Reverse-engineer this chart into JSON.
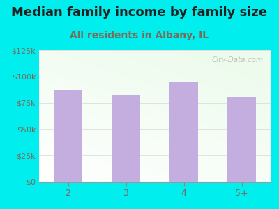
{
  "title": "Median family income by family size",
  "subtitle": "All residents in Albany, IL",
  "categories": [
    "2",
    "3",
    "4",
    "5+"
  ],
  "values": [
    87000,
    82000,
    95000,
    81000
  ],
  "bar_color": "#c4aee0",
  "background_color": "#00EEEE",
  "title_color": "#222222",
  "subtitle_color": "#7a6a5a",
  "tick_color": "#7a6a5a",
  "ylim": [
    0,
    125000
  ],
  "yticks": [
    0,
    25000,
    50000,
    75000,
    100000,
    125000
  ],
  "ytick_labels": [
    "$0",
    "$25k",
    "$50k",
    "$75k",
    "$100k",
    "$125k"
  ],
  "watermark": "City-Data.com",
  "title_fontsize": 13,
  "subtitle_fontsize": 10
}
